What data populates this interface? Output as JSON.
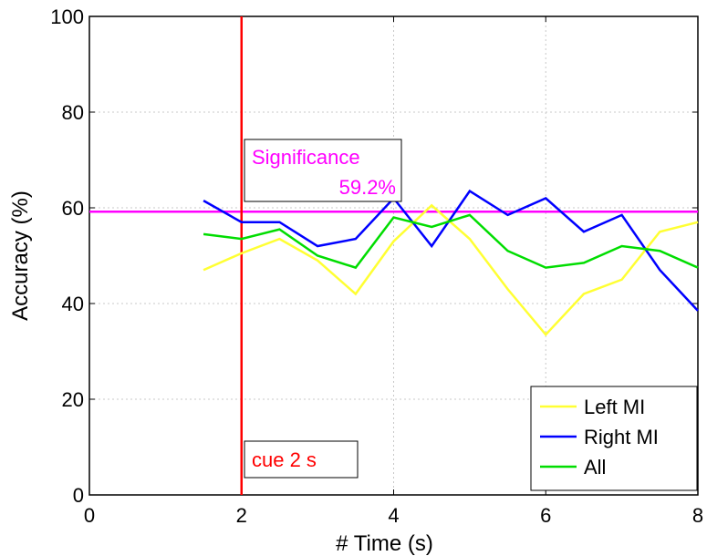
{
  "chart_data": {
    "type": "line",
    "xlabel": "# Time (s)",
    "ylabel": "Accuracy (%)",
    "xlim": [
      0,
      8
    ],
    "ylim": [
      0,
      100
    ],
    "xticks": [
      "0",
      "2",
      "4",
      "6",
      "8"
    ],
    "yticks": [
      "0",
      "20",
      "40",
      "60",
      "80",
      "100"
    ],
    "grid": true,
    "legend_position": "bottom-right",
    "x": [
      1.5,
      2,
      2.5,
      3,
      3.5,
      4,
      4.5,
      5,
      5.5,
      6,
      6.5,
      7,
      7.5,
      8
    ],
    "series": [
      {
        "name": "Left MI",
        "color": "#ffff33",
        "values": [
          47,
          50.5,
          53.5,
          49,
          42,
          53,
          60.5,
          53.5,
          43,
          33.5,
          42,
          45,
          55,
          57
        ]
      },
      {
        "name": "Right MI",
        "color": "#0000ff",
        "values": [
          61.5,
          57,
          57,
          52,
          53.5,
          62,
          52,
          63.5,
          58.5,
          62,
          55,
          58.5,
          47,
          38.5
        ]
      },
      {
        "name": "All",
        "color": "#00dd00",
        "values": [
          54.5,
          53.5,
          55.5,
          50,
          47.5,
          58,
          56,
          58.5,
          51,
          47.5,
          48.5,
          52,
          51,
          47.5
        ]
      }
    ],
    "significance_line": {
      "y": 59.2,
      "color": "#ff00ff",
      "label": "Significance",
      "value_label": "59.2%"
    },
    "cue_line": {
      "x": 2,
      "color": "#ff0000",
      "label": "cue 2 s"
    }
  }
}
